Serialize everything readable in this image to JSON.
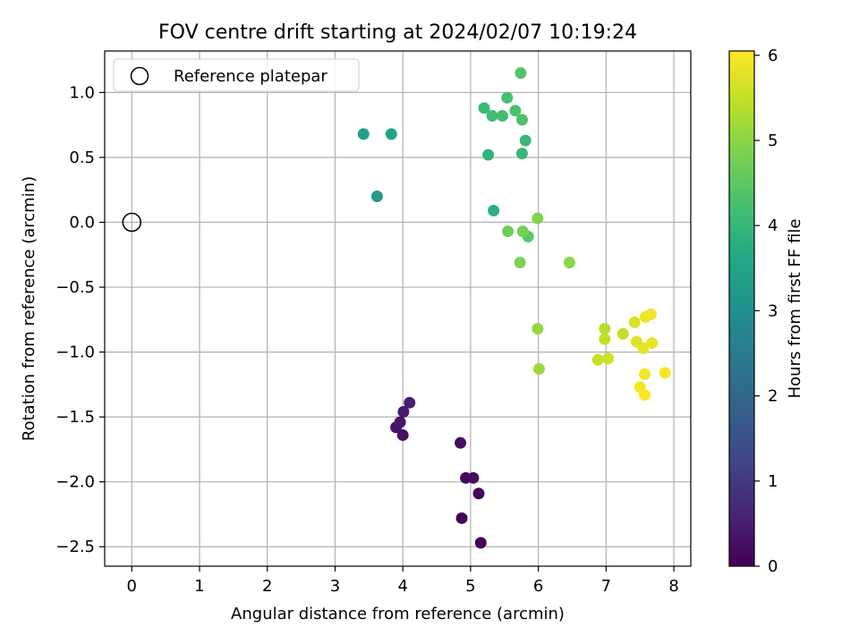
{
  "chart_data": {
    "type": "scatter",
    "title": "FOV centre drift starting at 2024/02/07 10:19:24",
    "xlabel": "Angular distance from reference (arcmin)",
    "ylabel": "Rotation from reference (arcmin)",
    "xlim": [
      -0.4,
      8.25
    ],
    "ylim": [
      -2.65,
      1.32
    ],
    "xticks": [
      0,
      1,
      2,
      3,
      4,
      5,
      6,
      7,
      8
    ],
    "xtick_labels": [
      "0",
      "1",
      "2",
      "3",
      "4",
      "5",
      "6",
      "7",
      "8"
    ],
    "yticks": [
      -2.5,
      -2.0,
      -1.5,
      -1.0,
      -0.5,
      0.0,
      0.5,
      1.0
    ],
    "ytick_labels": [
      "−2.5",
      "−2.0",
      "−1.5",
      "−1.0",
      "−0.5",
      "0.0",
      "0.5",
      "1.0"
    ],
    "grid": true,
    "legend": {
      "position": "upper-left",
      "entries": [
        "Reference platepar"
      ]
    },
    "reference": {
      "x": 0.0,
      "y": 0.0,
      "label": "Reference platepar",
      "marker": "open-circle"
    },
    "colorbar": {
      "label": "Hours from first FF file",
      "colormap": "viridis",
      "range": [
        0,
        6.05
      ],
      "ticks": [
        0,
        1,
        2,
        3,
        4,
        5,
        6
      ],
      "tick_labels": [
        "0",
        "1",
        "2",
        "3",
        "4",
        "5",
        "6"
      ]
    },
    "points": [
      {
        "x": 5.15,
        "y": -2.47,
        "c": 0.0
      },
      {
        "x": 4.87,
        "y": -2.28,
        "c": 0.05
      },
      {
        "x": 5.12,
        "y": -2.09,
        "c": 0.1
      },
      {
        "x": 4.93,
        "y": -1.97,
        "c": 0.15
      },
      {
        "x": 5.04,
        "y": -1.97,
        "c": 0.2
      },
      {
        "x": 4.85,
        "y": -1.7,
        "c": 0.25
      },
      {
        "x": 4.0,
        "y": -1.64,
        "c": 0.3
      },
      {
        "x": 3.9,
        "y": -1.58,
        "c": 0.35
      },
      {
        "x": 3.96,
        "y": -1.54,
        "c": 0.4
      },
      {
        "x": 4.01,
        "y": -1.46,
        "c": 0.45
      },
      {
        "x": 4.1,
        "y": -1.39,
        "c": 0.5
      },
      {
        "x": 3.62,
        "y": 0.2,
        "c": 3.3
      },
      {
        "x": 3.42,
        "y": 0.68,
        "c": 3.4
      },
      {
        "x": 3.83,
        "y": 0.68,
        "c": 3.5
      },
      {
        "x": 5.34,
        "y": 0.09,
        "c": 3.8
      },
      {
        "x": 5.26,
        "y": 0.52,
        "c": 3.9
      },
      {
        "x": 5.76,
        "y": 0.53,
        "c": 4.0
      },
      {
        "x": 5.81,
        "y": 0.63,
        "c": 4.05
      },
      {
        "x": 5.2,
        "y": 0.88,
        "c": 4.1
      },
      {
        "x": 5.32,
        "y": 0.82,
        "c": 4.15
      },
      {
        "x": 5.47,
        "y": 0.82,
        "c": 4.2
      },
      {
        "x": 5.54,
        "y": 0.96,
        "c": 4.25
      },
      {
        "x": 5.66,
        "y": 0.86,
        "c": 4.3
      },
      {
        "x": 5.76,
        "y": 0.79,
        "c": 4.35
      },
      {
        "x": 5.74,
        "y": 1.15,
        "c": 4.4
      },
      {
        "x": 5.85,
        "y": -0.11,
        "c": 4.5
      },
      {
        "x": 5.55,
        "y": -0.07,
        "c": 4.7
      },
      {
        "x": 5.77,
        "y": -0.07,
        "c": 4.8
      },
      {
        "x": 5.73,
        "y": -0.31,
        "c": 4.85
      },
      {
        "x": 5.99,
        "y": 0.03,
        "c": 4.9
      },
      {
        "x": 6.46,
        "y": -0.31,
        "c": 5.0
      },
      {
        "x": 5.99,
        "y": -0.82,
        "c": 5.1
      },
      {
        "x": 6.01,
        "y": -1.13,
        "c": 5.15
      },
      {
        "x": 6.98,
        "y": -0.82,
        "c": 5.4
      },
      {
        "x": 6.98,
        "y": -0.9,
        "c": 5.45
      },
      {
        "x": 7.25,
        "y": -0.86,
        "c": 5.5
      },
      {
        "x": 6.88,
        "y": -1.06,
        "c": 5.55
      },
      {
        "x": 7.03,
        "y": -1.05,
        "c": 5.6
      },
      {
        "x": 7.42,
        "y": -0.77,
        "c": 5.7
      },
      {
        "x": 7.45,
        "y": -0.92,
        "c": 5.75
      },
      {
        "x": 7.55,
        "y": -0.97,
        "c": 5.8
      },
      {
        "x": 7.68,
        "y": -0.93,
        "c": 5.85
      },
      {
        "x": 7.58,
        "y": -0.73,
        "c": 5.88
      },
      {
        "x": 7.66,
        "y": -0.71,
        "c": 5.9
      },
      {
        "x": 7.57,
        "y": -1.17,
        "c": 5.95
      },
      {
        "x": 7.87,
        "y": -1.16,
        "c": 5.97
      },
      {
        "x": 7.5,
        "y": -1.27,
        "c": 6.0
      },
      {
        "x": 7.57,
        "y": -1.33,
        "c": 6.03
      }
    ]
  }
}
